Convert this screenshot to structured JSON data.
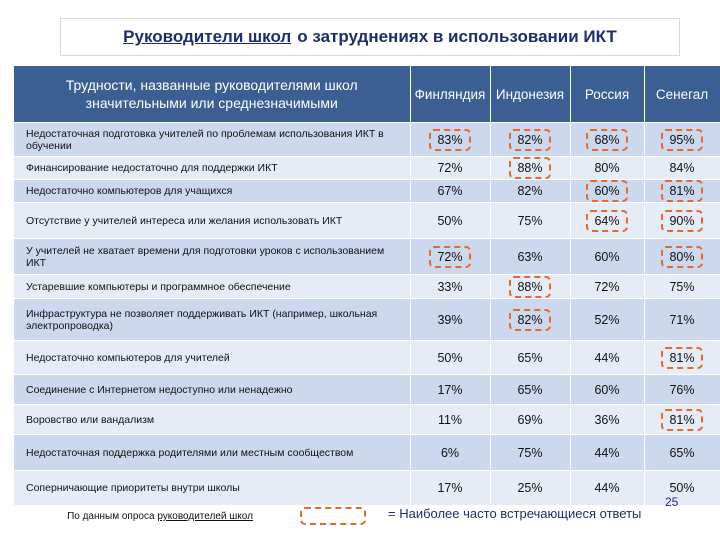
{
  "title": {
    "part1": "Руководители школ",
    "part2": "о затруднениях в использовании ИКТ"
  },
  "table": {
    "header": {
      "row_label": "Трудности, названные руководителями школ значительными или среднезначимыми",
      "countries": [
        "Финляндия",
        "Индонезия",
        "Россия",
        "Сенегал"
      ]
    },
    "rows": [
      {
        "label": "Недостаточная подготовка учителей по проблемам использования ИКТ в обучении",
        "values": [
          "83%",
          "82%",
          "68%",
          "95%"
        ]
      },
      {
        "label": "Финансирование недостаточно для поддержки ИКТ",
        "values": [
          "72%",
          "88%",
          "80%",
          "84%"
        ]
      },
      {
        "label": "Недостаточно компьютеров для учащихся",
        "values": [
          "67%",
          "82%",
          "60%",
          "81%"
        ]
      },
      {
        "label": "Отсутствие у учителей интереса или желания использовать ИКТ",
        "values": [
          "50%",
          "75%",
          "64%",
          "90%"
        ]
      },
      {
        "label": "У учителей не хватает времени для подготовки уроков с использованием ИКТ",
        "values": [
          "72%",
          "63%",
          "60%",
          "80%"
        ]
      },
      {
        "label": "Устаревшие компьютеры и программное обеспечение",
        "values": [
          "33%",
          "88%",
          "72%",
          "75%"
        ]
      },
      {
        "label": "Инфраструктура не позволяет поддерживать ИКТ (например, школьная электропроводка)",
        "values": [
          "39%",
          "82%",
          "52%",
          "71%"
        ]
      },
      {
        "label": "Недостаточно компьютеров для учителей",
        "values": [
          "50%",
          "65%",
          "44%",
          "81%"
        ]
      },
      {
        "label": "Соединение с Интернетом недоступно или ненадежно",
        "values": [
          "17%",
          "65%",
          "60%",
          "76%"
        ]
      },
      {
        "label": "Воровство или вандализм",
        "values": [
          "11%",
          "69%",
          "36%",
          "81%"
        ]
      },
      {
        "label": "Недостаточная поддержка родителями или местным сообществом",
        "values": [
          "6%",
          "75%",
          "44%",
          "65%"
        ]
      },
      {
        "label": "Соперничающие приоритеты внутри школы",
        "values": [
          "17%",
          "25%",
          "44%",
          "50%"
        ]
      }
    ]
  },
  "source": {
    "prefix": "По данным опроса",
    "linked": "руководителей школ"
  },
  "legend": {
    "text": "= Наиболее часто встречающиеся ответы"
  },
  "page_number": "25",
  "colors": {
    "header_bg": "#3b5e93",
    "row_dark": "#cbd8ee",
    "row_light": "#e6ecf6",
    "highlight": "#e8672a",
    "title": "#1f2e6b"
  }
}
